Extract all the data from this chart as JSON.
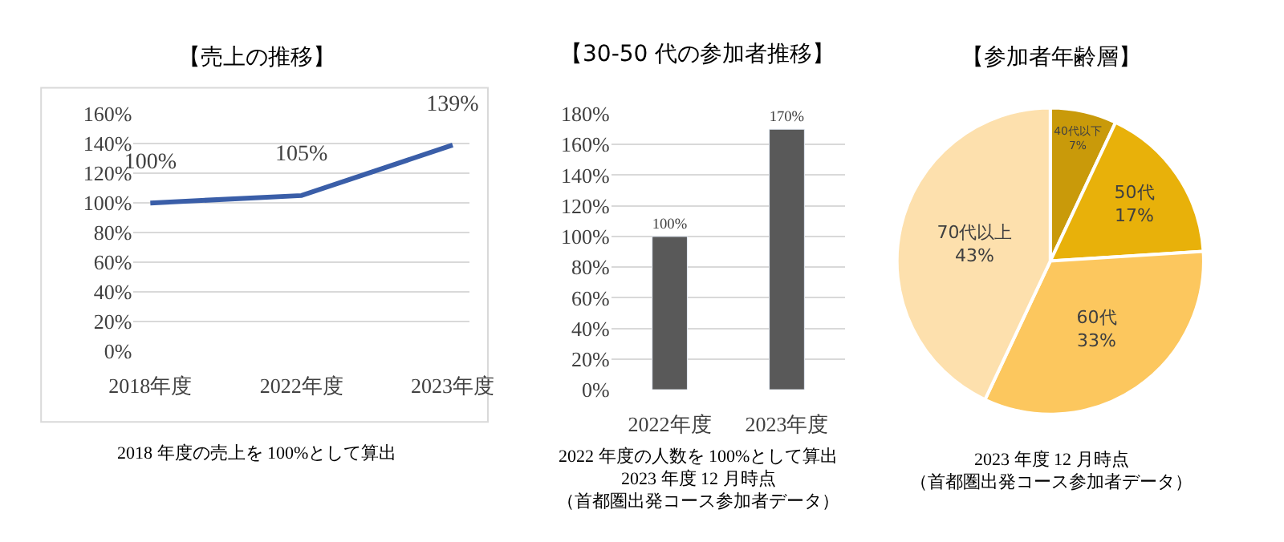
{
  "chart_data": [
    {
      "type": "line",
      "title": "【売上の推移】",
      "categories": [
        "2018年度",
        "2022年度",
        "2023年度"
      ],
      "values": [
        100,
        105,
        139
      ],
      "value_labels": [
        "100%",
        "105%",
        "139%"
      ],
      "color": "#3a5ea8",
      "ylim": [
        0,
        160
      ],
      "yticks": [
        {
          "value": 0,
          "label": "0%"
        },
        {
          "value": 20,
          "label": "20%"
        },
        {
          "value": 40,
          "label": "40%"
        },
        {
          "value": 60,
          "label": "60%"
        },
        {
          "value": 80,
          "label": "80%"
        },
        {
          "value": 100,
          "label": "100%"
        },
        {
          "value": 120,
          "label": "120%"
        },
        {
          "value": 140,
          "label": "140%"
        },
        {
          "value": 160,
          "label": "160%"
        }
      ],
      "grid": "y",
      "marker": "none",
      "line_style": "solid",
      "annotations": [
        "2018 年度の売上を 100%として算出"
      ]
    },
    {
      "type": "bar",
      "title": "【30-50 代の参加者推移】",
      "categories": [
        "2022年度",
        "2023年度"
      ],
      "values": [
        100,
        170
      ],
      "value_labels": [
        "100%",
        "170%"
      ],
      "color": "#595959",
      "ylim": [
        0,
        180
      ],
      "yticks": [
        {
          "value": 0,
          "label": "0%"
        },
        {
          "value": 20,
          "label": "20%"
        },
        {
          "value": 40,
          "label": "40%"
        },
        {
          "value": 60,
          "label": "60%"
        },
        {
          "value": 80,
          "label": "80%"
        },
        {
          "value": 100,
          "label": "100%"
        },
        {
          "value": 120,
          "label": "120%"
        },
        {
          "value": 140,
          "label": "140%"
        },
        {
          "value": 160,
          "label": "160%"
        },
        {
          "value": 180,
          "label": "180%"
        }
      ],
      "grid": "y",
      "annotations": [
        "2022 年度の人数を 100%として算出",
        "2023 年度 12 月時点",
        "（首都圏出発コース参加者データ）"
      ]
    },
    {
      "type": "pie",
      "title": "【参加者年齢層】",
      "categories": [
        "40代以下",
        "50代",
        "60代",
        "70代以上"
      ],
      "values": [
        7,
        17,
        33,
        43
      ],
      "value_labels": [
        "7%",
        "17%",
        "33%",
        "43%"
      ],
      "colors": [
        "#c99a0a",
        "#e8b10a",
        "#fcc75e",
        "#fde0ad"
      ],
      "annotations": [
        "2023 年度 12 月時点",
        "（首都圏出発コース参加者データ）"
      ]
    }
  ]
}
